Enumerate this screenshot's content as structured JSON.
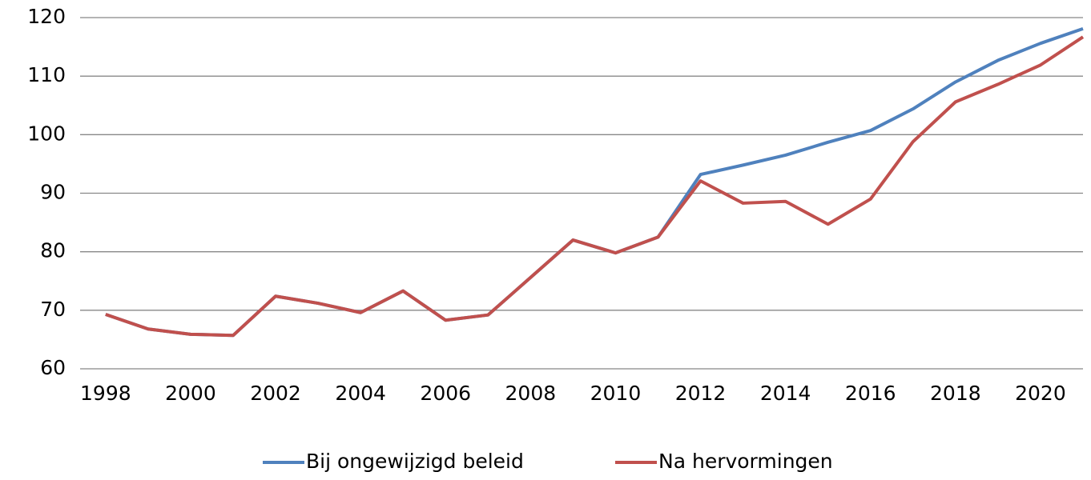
{
  "chart_data": {
    "type": "line",
    "x": [
      1998,
      1999,
      2000,
      2001,
      2002,
      2003,
      2004,
      2005,
      2006,
      2007,
      2008,
      2009,
      2010,
      2011,
      2012,
      2013,
      2014,
      2015,
      2016,
      2017,
      2018,
      2019,
      2020,
      2021
    ],
    "series": [
      {
        "name": "Bij ongewijzigd beleid",
        "color": "#4f81bd",
        "values": [
          69.3,
          66.8,
          65.9,
          65.7,
          72.4,
          71.2,
          69.6,
          73.3,
          68.3,
          69.2,
          75.6,
          82.0,
          79.8,
          82.5,
          93.2,
          94.8,
          96.5,
          98.7,
          100.7,
          104.4,
          109.0,
          112.7,
          115.6,
          118.1
        ]
      },
      {
        "name": "Na hervormingen",
        "color": "#c0504d",
        "values": [
          69.3,
          66.8,
          65.9,
          65.7,
          72.4,
          71.2,
          69.6,
          73.3,
          68.3,
          69.2,
          75.6,
          82.0,
          79.8,
          82.5,
          92.1,
          88.3,
          88.6,
          84.7,
          89.0,
          98.8,
          105.6,
          108.6,
          111.9,
          116.7
        ]
      }
    ],
    "xlim": [
      1997.4,
      2021
    ],
    "xticks": [
      1998,
      2000,
      2002,
      2004,
      2006,
      2008,
      2010,
      2012,
      2014,
      2016,
      2018,
      2020
    ],
    "ylim": [
      60,
      120
    ],
    "yticks": [
      60,
      70,
      80,
      90,
      100,
      110,
      120
    ],
    "grid": true,
    "legend": "bottom"
  }
}
